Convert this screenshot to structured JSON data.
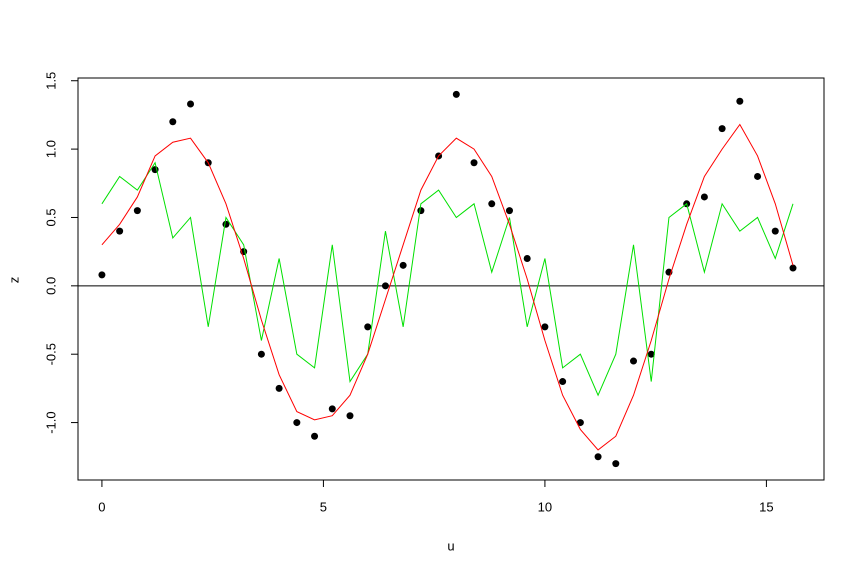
{
  "chart_data": {
    "type": "scatter",
    "xlabel": "u",
    "ylabel": "z",
    "xlim": [
      -0.54,
      16.3
    ],
    "ylim": [
      -1.42,
      1.52
    ],
    "xticks": [
      0,
      5,
      10,
      15
    ],
    "yticks": [
      {
        "value": -1.0,
        "label": "-1.0"
      },
      -0.5,
      {
        "value": 0.0,
        "label": "0.0"
      },
      0.5,
      {
        "value": 1.0,
        "label": "1.0"
      },
      1.5
    ],
    "hline": 0,
    "x": [
      0,
      0.4,
      0.8,
      1.2,
      1.6,
      2.0,
      2.4,
      2.8,
      3.2,
      3.6,
      4.0,
      4.4,
      4.8,
      5.2,
      5.6,
      6.0,
      6.4,
      6.8,
      7.2,
      7.6,
      8.0,
      8.4,
      8.8,
      9.2,
      9.6,
      10.0,
      10.4,
      10.8,
      11.2,
      11.6,
      12.0,
      12.4,
      12.8,
      13.2,
      13.6,
      14.0,
      14.4,
      14.8,
      15.2,
      15.6
    ],
    "series": [
      {
        "style": "points",
        "color": "#000000",
        "values": [
          0.08,
          0.4,
          0.55,
          0.85,
          1.2,
          1.33,
          0.9,
          0.45,
          0.25,
          -0.5,
          -0.75,
          -1.0,
          -1.1,
          -0.9,
          -0.95,
          -0.3,
          0.0,
          0.15,
          0.55,
          0.95,
          1.4,
          0.9,
          0.6,
          0.55,
          0.2,
          -0.3,
          -0.7,
          -1.0,
          -1.25,
          -1.3,
          -0.55,
          -0.5,
          0.1,
          0.6,
          0.65,
          1.15,
          1.35,
          0.8,
          0.4,
          0.13
        ]
      },
      {
        "style": "line",
        "color": "#00e000",
        "values": [
          0.6,
          0.8,
          0.7,
          0.9,
          0.35,
          0.5,
          -0.3,
          0.5,
          0.3,
          -0.4,
          0.2,
          -0.5,
          -0.6,
          0.3,
          -0.7,
          -0.5,
          0.4,
          -0.3,
          0.6,
          0.7,
          0.5,
          0.6,
          0.1,
          0.5,
          -0.3,
          0.2,
          -0.6,
          -0.5,
          -0.8,
          -0.5,
          0.3,
          -0.7,
          0.5,
          0.6,
          0.1,
          0.6,
          0.4,
          0.5,
          0.2,
          0.6
        ]
      },
      {
        "style": "line",
        "color": "#ff0000",
        "values": [
          0.3,
          0.45,
          0.65,
          0.95,
          1.05,
          1.08,
          0.9,
          0.6,
          0.2,
          -0.25,
          -0.65,
          -0.92,
          -0.98,
          -0.95,
          -0.8,
          -0.5,
          -0.1,
          0.3,
          0.7,
          0.95,
          1.08,
          1.0,
          0.8,
          0.45,
          0.05,
          -0.4,
          -0.8,
          -1.05,
          -1.2,
          -1.1,
          -0.8,
          -0.4,
          0.05,
          0.45,
          0.8,
          1.0,
          1.18,
          0.95,
          0.6,
          0.15
        ]
      }
    ]
  }
}
